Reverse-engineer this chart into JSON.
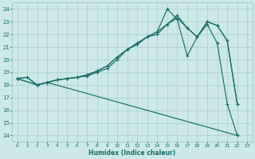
{
  "xlabel": "Humidex (Indice chaleur)",
  "bg_color": "#cce8e8",
  "grid_color": "#aacccc",
  "line_color": "#1a6e6a",
  "xlim": [
    -0.5,
    23.5
  ],
  "ylim": [
    13.5,
    24.5
  ],
  "xticks": [
    0,
    1,
    2,
    3,
    4,
    5,
    6,
    7,
    8,
    9,
    10,
    11,
    12,
    13,
    14,
    15,
    16,
    17,
    18,
    19,
    20,
    21,
    22,
    23
  ],
  "yticks": [
    14,
    15,
    16,
    17,
    18,
    19,
    20,
    21,
    22,
    23,
    24
  ],
  "series": [
    {
      "x": [
        0,
        1,
        2,
        3,
        4,
        5,
        6,
        7,
        8,
        9,
        10,
        11,
        12,
        13,
        14,
        15,
        16,
        17,
        18,
        19,
        20,
        21,
        22
      ],
      "y": [
        18.5,
        18.6,
        18.0,
        18.2,
        18.4,
        18.5,
        18.6,
        18.7,
        19.0,
        19.3,
        20.0,
        20.8,
        21.2,
        21.8,
        22.2,
        24.0,
        23.2,
        20.3,
        21.8,
        22.8,
        21.3,
        16.5,
        14.0
      ]
    },
    {
      "x": [
        0,
        1,
        2,
        3,
        4,
        5,
        6,
        7,
        8,
        9,
        10,
        11,
        12,
        13,
        14,
        15,
        16,
        17,
        18,
        19,
        20,
        21,
        22
      ],
      "y": [
        18.5,
        18.6,
        18.0,
        18.2,
        18.4,
        18.5,
        18.6,
        18.8,
        19.1,
        19.5,
        20.2,
        20.8,
        21.3,
        21.8,
        22.2,
        22.8,
        23.3,
        22.5,
        21.8,
        23.0,
        22.7,
        21.5,
        16.5
      ]
    },
    {
      "x": [
        0,
        2,
        3,
        4,
        5,
        6,
        7,
        8,
        9,
        10,
        11,
        12,
        13,
        14,
        15,
        16,
        17,
        18,
        19,
        20,
        21,
        22
      ],
      "y": [
        18.5,
        18.0,
        18.2,
        18.4,
        18.5,
        18.6,
        18.8,
        19.1,
        19.5,
        20.2,
        20.8,
        21.3,
        21.8,
        22.0,
        22.8,
        23.5,
        22.5,
        21.8,
        23.0,
        22.7,
        21.5,
        16.5
      ]
    },
    {
      "x": [
        0,
        2,
        3,
        22
      ],
      "y": [
        18.5,
        18.0,
        18.2,
        14.0
      ]
    }
  ]
}
